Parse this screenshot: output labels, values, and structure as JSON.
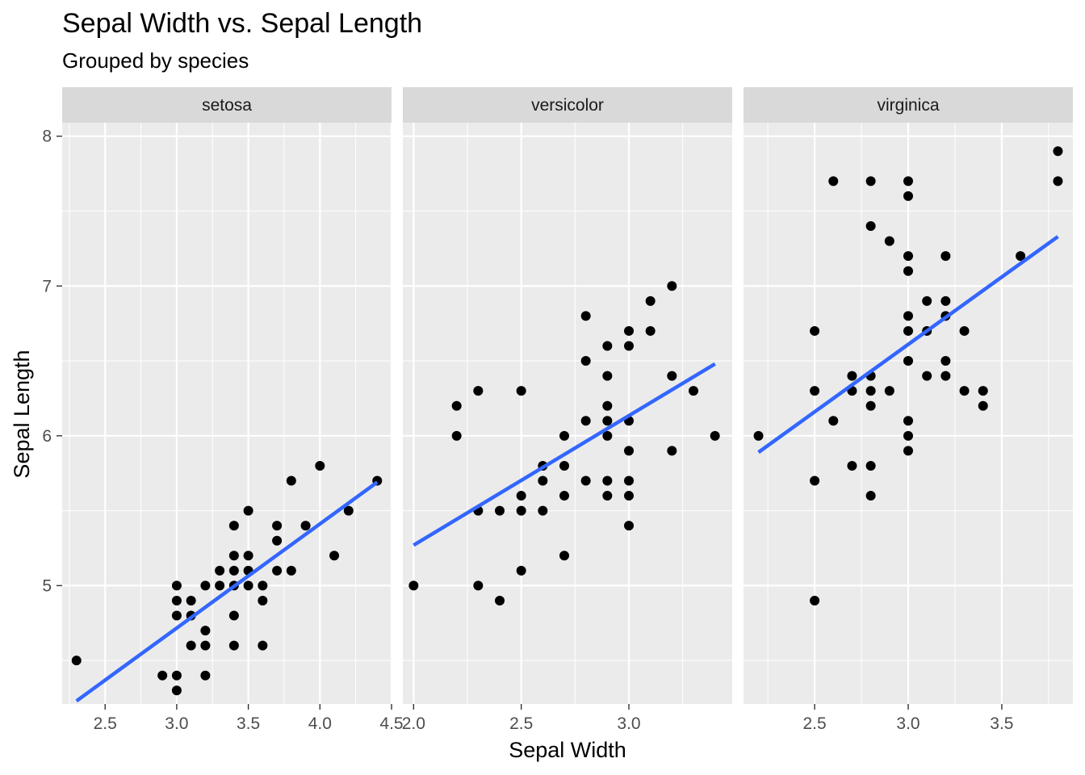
{
  "chart_data": {
    "type": "scatter",
    "title": "Sepal Width vs. Sepal Length",
    "subtitle": "Grouped by species",
    "xlabel": "Sepal Width",
    "ylabel": "Sepal Length",
    "y_ticks": [
      5,
      6,
      7,
      8
    ],
    "y_tick_labels": [
      "5",
      "6",
      "7",
      "8"
    ],
    "ylim": [
      4.21,
      8.09
    ],
    "grid": true,
    "point_color": "#000000",
    "fit_line_color": "#3366ff",
    "panel_background": "#ebebeb",
    "strip_background": "#d9d9d9",
    "panels": [
      {
        "label": "setosa",
        "xlim": [
          2.2,
          4.5
        ],
        "x_ticks": [
          2.5,
          3.0,
          3.5,
          4.0,
          4.5
        ],
        "x_tick_labels": [
          "2.5",
          "3.0",
          "3.5",
          "4.0",
          "4.5"
        ],
        "fit_line": {
          "x": [
            2.3,
            4.4
          ],
          "y": [
            4.23,
            5.69
          ]
        },
        "points": [
          [
            2.3,
            4.5
          ],
          [
            2.9,
            4.4
          ],
          [
            3.0,
            5.0
          ],
          [
            3.0,
            4.9
          ],
          [
            3.0,
            4.8
          ],
          [
            3.0,
            4.4
          ],
          [
            3.0,
            4.3
          ],
          [
            3.1,
            4.9
          ],
          [
            3.1,
            4.8
          ],
          [
            3.1,
            4.6
          ],
          [
            3.2,
            5.0
          ],
          [
            3.2,
            4.7
          ],
          [
            3.2,
            4.6
          ],
          [
            3.2,
            4.4
          ],
          [
            3.3,
            5.1
          ],
          [
            3.3,
            5.0
          ],
          [
            3.4,
            5.4
          ],
          [
            3.4,
            5.2
          ],
          [
            3.4,
            5.1
          ],
          [
            3.4,
            5.0
          ],
          [
            3.4,
            4.8
          ],
          [
            3.4,
            4.6
          ],
          [
            3.5,
            5.5
          ],
          [
            3.5,
            5.2
          ],
          [
            3.5,
            5.1
          ],
          [
            3.5,
            5.0
          ],
          [
            3.6,
            5.0
          ],
          [
            3.6,
            4.9
          ],
          [
            3.6,
            4.6
          ],
          [
            3.7,
            5.4
          ],
          [
            3.7,
            5.3
          ],
          [
            3.7,
            5.1
          ],
          [
            3.8,
            5.7
          ],
          [
            3.8,
            5.1
          ],
          [
            3.9,
            5.4
          ],
          [
            4.0,
            5.8
          ],
          [
            4.1,
            5.2
          ],
          [
            4.2,
            5.5
          ],
          [
            4.4,
            5.7
          ]
        ]
      },
      {
        "label": "versicolor",
        "xlim": [
          1.95,
          3.48
        ],
        "x_ticks": [
          2.0,
          2.5,
          3.0
        ],
        "x_tick_labels": [
          "2.0",
          "2.5",
          "3.0"
        ],
        "fit_line": {
          "x": [
            2.0,
            3.4
          ],
          "y": [
            5.27,
            6.48
          ]
        },
        "points": [
          [
            2.0,
            5.0
          ],
          [
            2.2,
            6.2
          ],
          [
            2.2,
            6.0
          ],
          [
            2.3,
            6.3
          ],
          [
            2.3,
            5.5
          ],
          [
            2.3,
            5.0
          ],
          [
            2.4,
            5.5
          ],
          [
            2.4,
            4.9
          ],
          [
            2.5,
            6.3
          ],
          [
            2.5,
            5.6
          ],
          [
            2.5,
            5.5
          ],
          [
            2.5,
            5.1
          ],
          [
            2.6,
            5.8
          ],
          [
            2.6,
            5.7
          ],
          [
            2.6,
            5.5
          ],
          [
            2.7,
            6.0
          ],
          [
            2.7,
            5.8
          ],
          [
            2.7,
            5.6
          ],
          [
            2.7,
            5.2
          ],
          [
            2.8,
            6.8
          ],
          [
            2.8,
            6.5
          ],
          [
            2.8,
            6.1
          ],
          [
            2.8,
            5.7
          ],
          [
            2.9,
            6.6
          ],
          [
            2.9,
            6.4
          ],
          [
            2.9,
            6.2
          ],
          [
            2.9,
            6.1
          ],
          [
            2.9,
            6.0
          ],
          [
            2.9,
            5.7
          ],
          [
            2.9,
            5.6
          ],
          [
            3.0,
            6.7
          ],
          [
            3.0,
            6.6
          ],
          [
            3.0,
            6.1
          ],
          [
            3.0,
            5.9
          ],
          [
            3.0,
            5.7
          ],
          [
            3.0,
            5.6
          ],
          [
            3.0,
            5.4
          ],
          [
            3.1,
            6.9
          ],
          [
            3.1,
            6.7
          ],
          [
            3.2,
            7.0
          ],
          [
            3.2,
            6.4
          ],
          [
            3.2,
            5.9
          ],
          [
            3.3,
            6.3
          ],
          [
            3.4,
            6.0
          ]
        ]
      },
      {
        "label": "virginica",
        "xlim": [
          2.12,
          3.88
        ],
        "x_ticks": [
          2.5,
          3.0,
          3.5
        ],
        "x_tick_labels": [
          "2.5",
          "3.0",
          "3.5"
        ],
        "fit_line": {
          "x": [
            2.2,
            3.8
          ],
          "y": [
            5.89,
            7.33
          ]
        },
        "points": [
          [
            2.2,
            6.0
          ],
          [
            2.5,
            6.7
          ],
          [
            2.5,
            6.3
          ],
          [
            2.5,
            5.7
          ],
          [
            2.5,
            4.9
          ],
          [
            2.6,
            7.7
          ],
          [
            2.6,
            6.1
          ],
          [
            2.7,
            6.4
          ],
          [
            2.7,
            6.3
          ],
          [
            2.7,
            5.8
          ],
          [
            2.8,
            7.7
          ],
          [
            2.8,
            7.4
          ],
          [
            2.8,
            6.4
          ],
          [
            2.8,
            6.3
          ],
          [
            2.8,
            6.2
          ],
          [
            2.8,
            5.8
          ],
          [
            2.8,
            5.6
          ],
          [
            2.9,
            7.3
          ],
          [
            2.9,
            6.3
          ],
          [
            3.0,
            7.7
          ],
          [
            3.0,
            7.6
          ],
          [
            3.0,
            7.2
          ],
          [
            3.0,
            7.1
          ],
          [
            3.0,
            6.8
          ],
          [
            3.0,
            6.7
          ],
          [
            3.0,
            6.5
          ],
          [
            3.0,
            6.1
          ],
          [
            3.0,
            6.0
          ],
          [
            3.0,
            5.9
          ],
          [
            3.1,
            6.9
          ],
          [
            3.1,
            6.7
          ],
          [
            3.1,
            6.4
          ],
          [
            3.2,
            7.2
          ],
          [
            3.2,
            6.9
          ],
          [
            3.2,
            6.8
          ],
          [
            3.2,
            6.5
          ],
          [
            3.2,
            6.4
          ],
          [
            3.3,
            6.7
          ],
          [
            3.3,
            6.3
          ],
          [
            3.4,
            6.3
          ],
          [
            3.4,
            6.2
          ],
          [
            3.6,
            7.2
          ],
          [
            3.8,
            7.9
          ],
          [
            3.8,
            7.7
          ]
        ]
      }
    ]
  }
}
